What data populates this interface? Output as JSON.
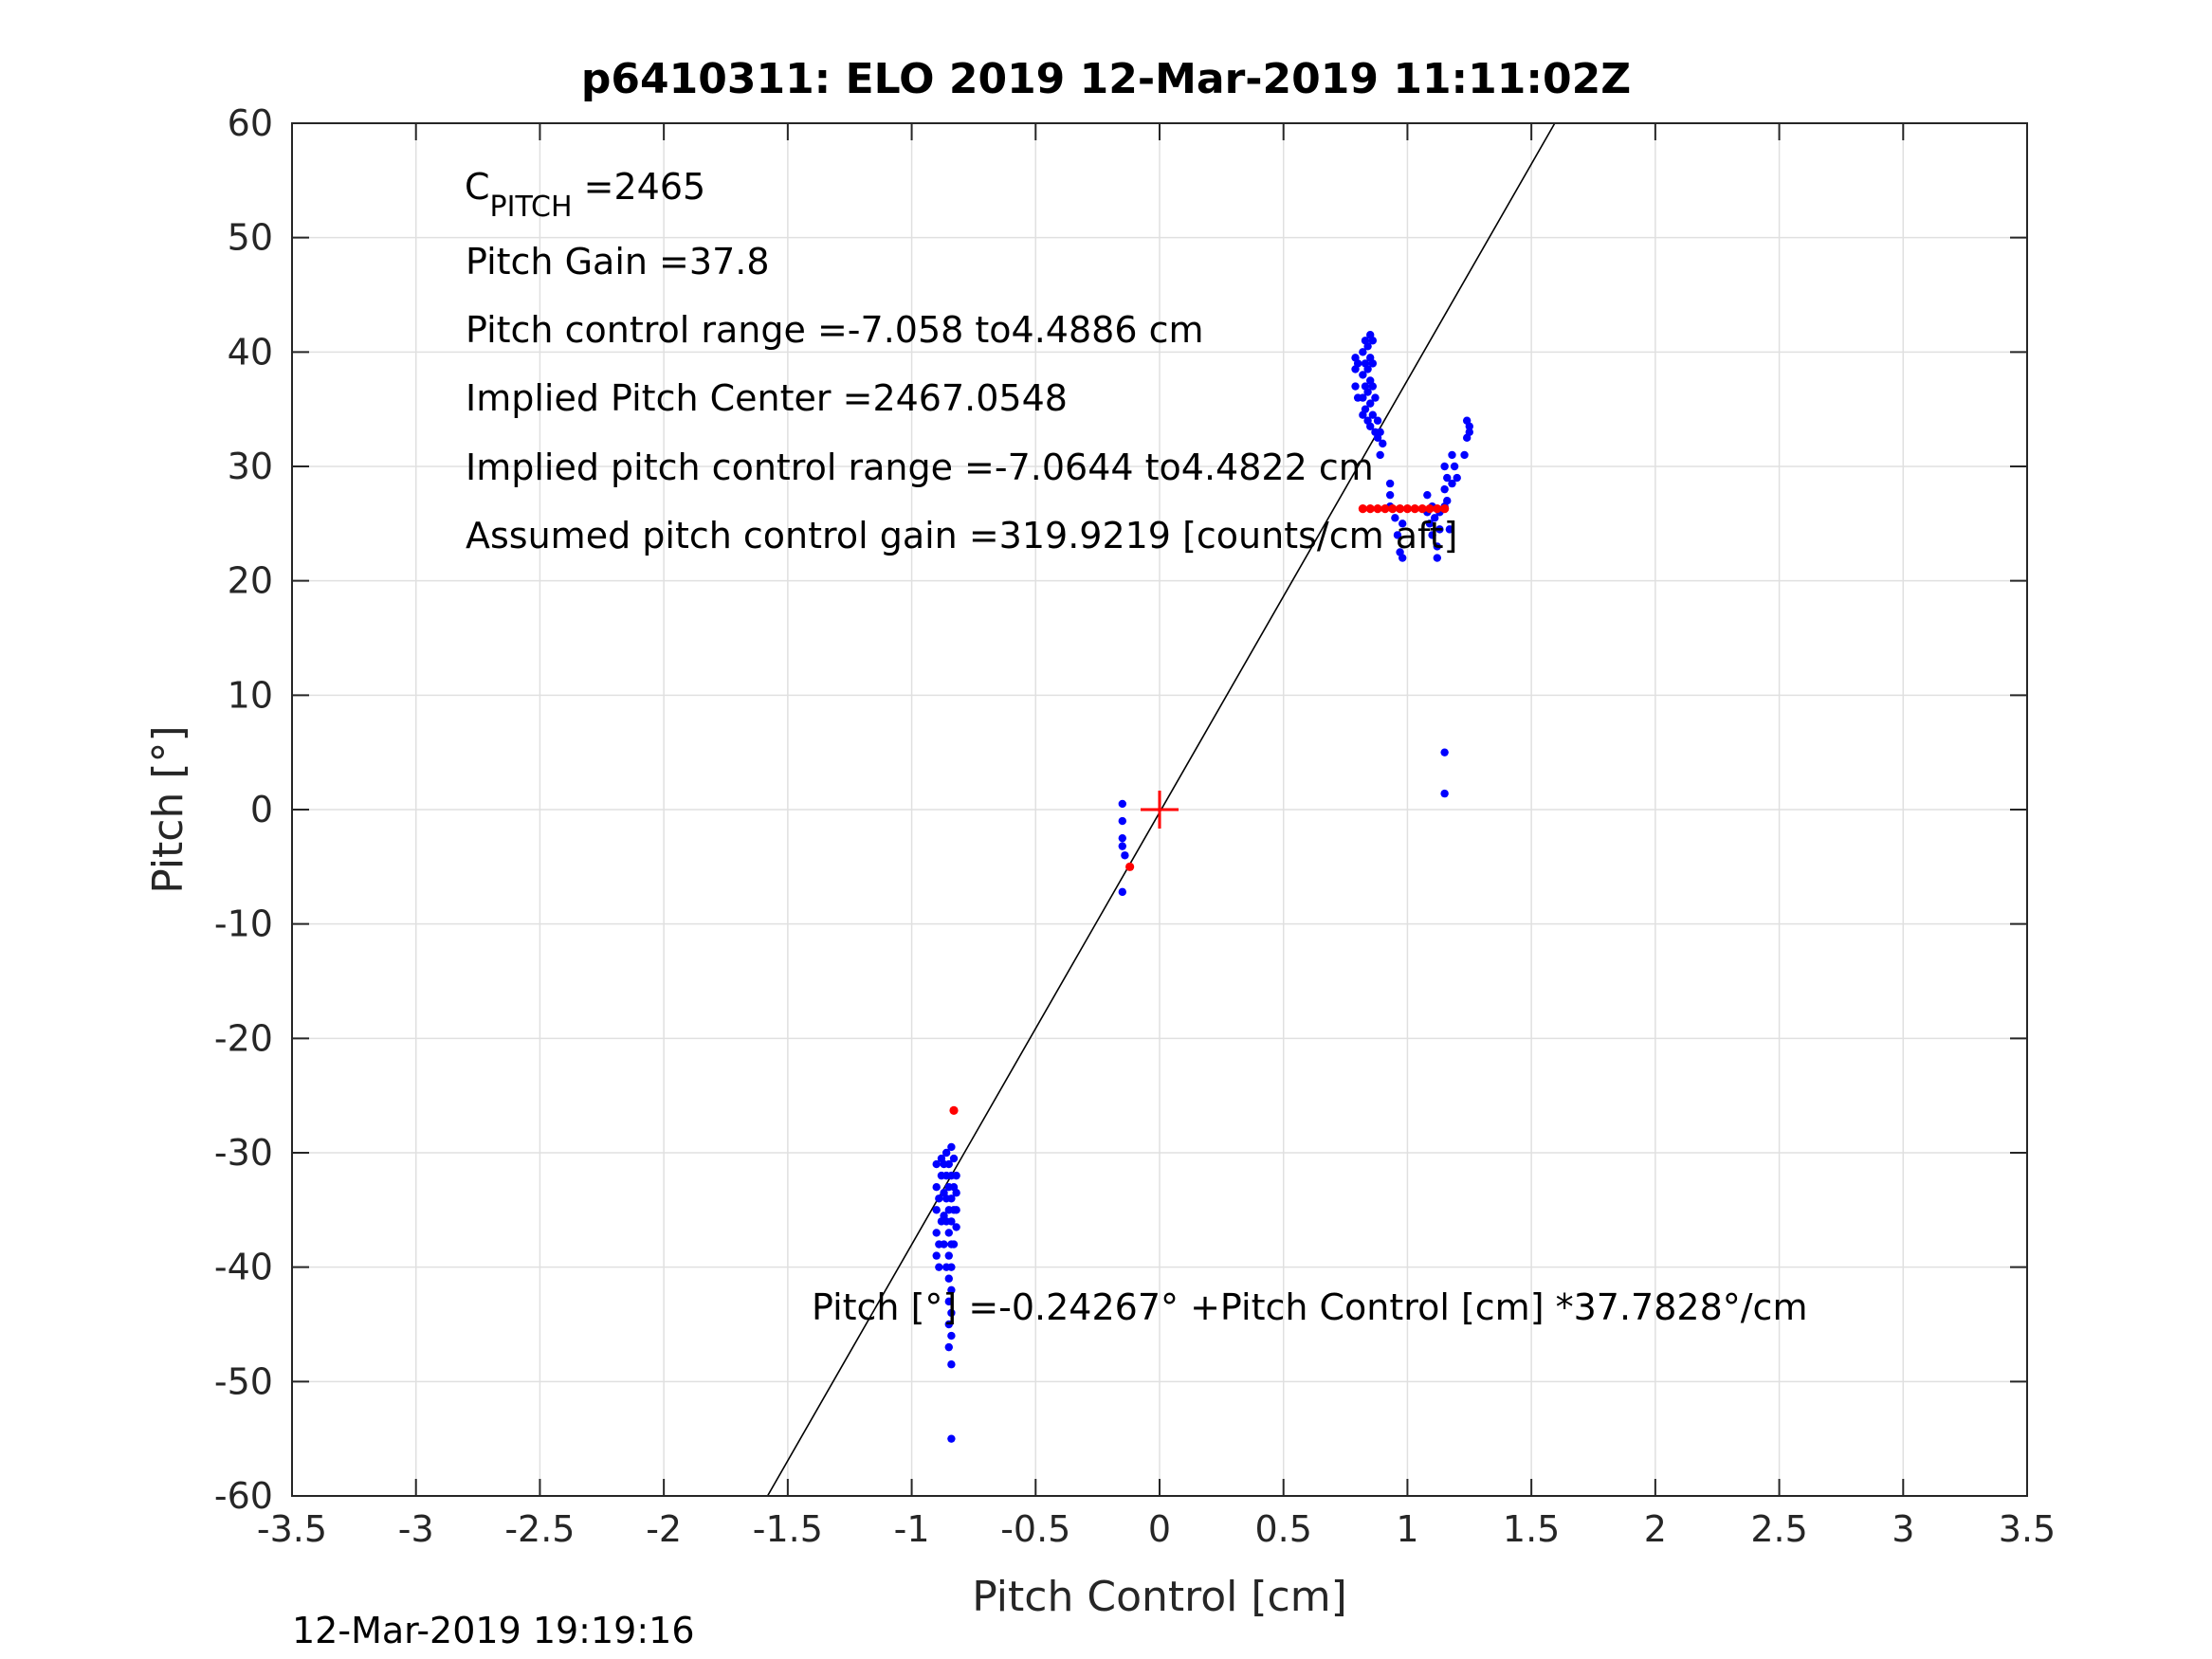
{
  "chart_data": {
    "type": "scatter",
    "title": "p6410311: ELO 2019 12-Mar-2019 11:11:02Z",
    "xlabel": "Pitch Control [cm]",
    "ylabel": "Pitch [°]",
    "xlim": [
      -3.5,
      3.5
    ],
    "ylim": [
      -60,
      60
    ],
    "xticks": [
      -3.5,
      -3,
      -2.5,
      -2,
      -1.5,
      -1,
      -0.5,
      0,
      0.5,
      1,
      1.5,
      2,
      2.5,
      3,
      3.5
    ],
    "xtick_labels": [
      "-3.5",
      "-3",
      "-2.5",
      "-2",
      "-1.5",
      "-1",
      "-0.5",
      "0",
      "0.5",
      "1",
      "1.5",
      "2",
      "2.5",
      "3",
      "3.5"
    ],
    "yticks": [
      -60,
      -50,
      -40,
      -30,
      -20,
      -10,
      0,
      10,
      20,
      30,
      40,
      50,
      60
    ],
    "ytick_labels": [
      "-60",
      "-50",
      "-40",
      "-30",
      "-20",
      "-10",
      "0",
      "10",
      "20",
      "30",
      "40",
      "50",
      "60"
    ],
    "grid": true,
    "colors": {
      "blue": "#0000ff",
      "red": "#ff0000",
      "fit_line": "#000000",
      "grid": "#e0e0e0"
    },
    "annotations": {
      "c_pitch_main": "C",
      "c_pitch_sub": "PITCH",
      "c_pitch_value": " =2465",
      "pitch_gain": "Pitch Gain =37.8",
      "control_range": "Pitch control range =-7.058 to4.4886 cm",
      "implied_center": "Implied Pitch Center =2467.0548",
      "implied_range": "Implied pitch control range =-7.0644 to4.4822 cm",
      "assumed_gain": "Assumed pitch control gain =319.9219 [counts/cm aft]",
      "fit_equation": "Pitch [°] =-0.24267° +Pitch Control [cm] *37.7828°/cm"
    },
    "fit": {
      "intercept": -0.24267,
      "slope": 37.7828
    },
    "center_marker": {
      "x": 0,
      "y": 0,
      "color": "#ff0000",
      "marker": "+"
    },
    "series": [
      {
        "color": "#0000ff",
        "points": [
          [
            -0.9,
            -31
          ],
          [
            -0.9,
            -33
          ],
          [
            -0.9,
            -35
          ],
          [
            -0.9,
            -37
          ],
          [
            -0.9,
            -39
          ],
          [
            -0.89,
            -34
          ],
          [
            -0.89,
            -38
          ],
          [
            -0.89,
            -40
          ],
          [
            -0.88,
            -30.5
          ],
          [
            -0.88,
            -32
          ],
          [
            -0.88,
            -36
          ],
          [
            -0.87,
            -31
          ],
          [
            -0.87,
            -33.5
          ],
          [
            -0.87,
            -35.5
          ],
          [
            -0.87,
            -38
          ],
          [
            -0.86,
            -30
          ],
          [
            -0.86,
            -32
          ],
          [
            -0.86,
            -34
          ],
          [
            -0.86,
            -36
          ],
          [
            -0.86,
            -40
          ],
          [
            -0.85,
            -31
          ],
          [
            -0.85,
            -33
          ],
          [
            -0.85,
            -35
          ],
          [
            -0.85,
            -37
          ],
          [
            -0.85,
            -39
          ],
          [
            -0.85,
            -41
          ],
          [
            -0.85,
            -43
          ],
          [
            -0.85,
            -45
          ],
          [
            -0.85,
            -47
          ],
          [
            -0.84,
            -29.5
          ],
          [
            -0.84,
            -32
          ],
          [
            -0.84,
            -34
          ],
          [
            -0.84,
            -36
          ],
          [
            -0.84,
            -38
          ],
          [
            -0.84,
            -40
          ],
          [
            -0.84,
            -42
          ],
          [
            -0.84,
            -44
          ],
          [
            -0.84,
            -46
          ],
          [
            -0.84,
            -48.5
          ],
          [
            -0.84,
            -55
          ],
          [
            -0.83,
            -30.5
          ],
          [
            -0.83,
            -33
          ],
          [
            -0.83,
            -35
          ],
          [
            -0.83,
            -38
          ],
          [
            -0.82,
            -32
          ],
          [
            -0.82,
            -33.5
          ],
          [
            -0.82,
            -35
          ],
          [
            -0.82,
            -36.5
          ],
          [
            -0.15,
            0.5
          ],
          [
            -0.15,
            -1
          ],
          [
            -0.15,
            -2.5
          ],
          [
            -0.15,
            -3.2
          ],
          [
            -0.14,
            -4
          ],
          [
            -0.15,
            -7.2
          ],
          [
            0.79,
            39.5
          ],
          [
            0.79,
            38.5
          ],
          [
            0.79,
            37
          ],
          [
            0.8,
            36
          ],
          [
            0.8,
            39
          ],
          [
            0.82,
            40
          ],
          [
            0.82,
            38
          ],
          [
            0.82,
            36
          ],
          [
            0.82,
            34.5
          ],
          [
            0.83,
            41
          ],
          [
            0.83,
            39
          ],
          [
            0.83,
            37
          ],
          [
            0.83,
            35
          ],
          [
            0.84,
            40.5
          ],
          [
            0.84,
            38.5
          ],
          [
            0.84,
            36.5
          ],
          [
            0.84,
            34
          ],
          [
            0.85,
            41.5
          ],
          [
            0.85,
            39.5
          ],
          [
            0.85,
            37.5
          ],
          [
            0.85,
            35.5
          ],
          [
            0.85,
            33.5
          ],
          [
            0.86,
            41
          ],
          [
            0.86,
            39
          ],
          [
            0.86,
            37
          ],
          [
            0.86,
            34.5
          ],
          [
            0.87,
            36
          ],
          [
            0.87,
            33
          ],
          [
            0.88,
            32.5
          ],
          [
            0.88,
            34
          ],
          [
            0.89,
            31
          ],
          [
            0.89,
            33
          ],
          [
            0.9,
            32
          ],
          [
            0.93,
            28.5
          ],
          [
            0.93,
            27.5
          ],
          [
            0.93,
            26.5
          ],
          [
            0.95,
            25.5
          ],
          [
            0.96,
            24
          ],
          [
            0.97,
            22.5
          ],
          [
            0.98,
            22
          ],
          [
            0.98,
            25
          ],
          [
            1.08,
            27.5
          ],
          [
            1.08,
            26
          ],
          [
            1.09,
            25
          ],
          [
            1.1,
            26.5
          ],
          [
            1.1,
            24
          ],
          [
            1.11,
            25.5
          ],
          [
            1.12,
            23
          ],
          [
            1.12,
            22
          ],
          [
            1.13,
            26
          ],
          [
            1.13,
            24.5
          ],
          [
            1.15,
            28
          ],
          [
            1.15,
            30
          ],
          [
            1.15,
            26.5
          ],
          [
            1.16,
            29
          ],
          [
            1.16,
            27
          ],
          [
            1.17,
            24.5
          ],
          [
            1.18,
            31
          ],
          [
            1.18,
            28.5
          ],
          [
            1.19,
            30
          ],
          [
            1.2,
            29
          ],
          [
            1.23,
            31
          ],
          [
            1.24,
            32.5
          ],
          [
            1.24,
            34
          ],
          [
            1.25,
            33.5
          ],
          [
            1.25,
            33
          ],
          [
            1.15,
            5
          ],
          [
            1.15,
            1.4
          ]
        ]
      },
      {
        "color": "#ff0000",
        "points": [
          [
            -0.83,
            -26.3
          ],
          [
            -0.12,
            -5
          ],
          [
            0.82,
            26.3
          ],
          [
            0.85,
            26.3
          ],
          [
            0.88,
            26.3
          ],
          [
            0.91,
            26.3
          ],
          [
            0.94,
            26.3
          ],
          [
            0.97,
            26.3
          ],
          [
            1.0,
            26.3
          ],
          [
            1.03,
            26.3
          ],
          [
            1.06,
            26.3
          ],
          [
            1.09,
            26.3
          ],
          [
            1.12,
            26.3
          ],
          [
            1.15,
            26.3
          ]
        ]
      }
    ]
  },
  "footer": {
    "timestamp": "12-Mar-2019 19:19:16"
  }
}
